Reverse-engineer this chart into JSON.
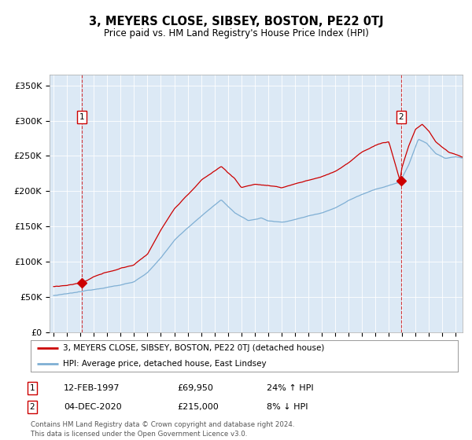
{
  "title": "3, MEYERS CLOSE, SIBSEY, BOSTON, PE22 0TJ",
  "subtitle": "Price paid vs. HM Land Registry's House Price Index (HPI)",
  "legend_line1": "3, MEYERS CLOSE, SIBSEY, BOSTON, PE22 0TJ (detached house)",
  "legend_line2": "HPI: Average price, detached house, East Lindsey",
  "annotation1_date": "12-FEB-1997",
  "annotation1_price": "£69,950",
  "annotation1_hpi": "24% ↑ HPI",
  "annotation2_date": "04-DEC-2020",
  "annotation2_price": "£215,000",
  "annotation2_hpi": "8% ↓ HPI",
  "footer": "Contains HM Land Registry data © Crown copyright and database right 2024.\nThis data is licensed under the Open Government Licence v3.0.",
  "sale1_year": 1997.12,
  "sale1_price": 69950,
  "sale2_year": 2020.92,
  "sale2_price": 215000,
  "red_line_color": "#cc0000",
  "blue_line_color": "#7fafd4",
  "marker_color": "#cc0000",
  "vline_color": "#cc0000",
  "plot_bg_color": "#dce9f5",
  "ylim_max": 360000,
  "xlim_start": 1994.7,
  "xlim_end": 2025.5,
  "hpi_keypoints_t": [
    1995.0,
    1996.0,
    1997.0,
    1998.0,
    1999.0,
    2000.0,
    2001.0,
    2002.0,
    2003.0,
    2004.0,
    2005.0,
    2006.0,
    2007.5,
    2008.5,
    2009.5,
    2010.5,
    2011.0,
    2012.0,
    2013.0,
    2014.0,
    2015.0,
    2016.0,
    2017.0,
    2018.0,
    2019.0,
    2020.0,
    2020.83,
    2021.5,
    2022.2,
    2022.8,
    2023.5,
    2024.2,
    2025.0,
    2025.5
  ],
  "hpi_keypoints_v": [
    52000,
    54000,
    56500,
    60000,
    64000,
    67000,
    72000,
    85000,
    105000,
    130000,
    148000,
    165000,
    188000,
    170000,
    158000,
    162000,
    158000,
    156000,
    160000,
    165000,
    170000,
    177000,
    188000,
    197000,
    205000,
    210000,
    215000,
    240000,
    275000,
    270000,
    255000,
    248000,
    250000,
    248000
  ],
  "red_keypoints_t": [
    1995.0,
    1996.0,
    1997.0,
    1997.5,
    1998.0,
    1999.0,
    2000.0,
    2001.0,
    2002.0,
    2003.0,
    2004.0,
    2005.0,
    2006.0,
    2007.5,
    2008.5,
    2009.0,
    2010.0,
    2011.0,
    2012.0,
    2013.0,
    2014.0,
    2015.0,
    2016.0,
    2017.0,
    2018.0,
    2019.0,
    2019.5,
    2020.0,
    2020.83,
    2021.0,
    2021.5,
    2022.0,
    2022.5,
    2023.0,
    2023.5,
    2024.0,
    2024.5,
    2025.0,
    2025.5
  ],
  "red_keypoints_v": [
    65000,
    67000,
    69950,
    73000,
    78000,
    84000,
    90000,
    95000,
    110000,
    145000,
    175000,
    195000,
    215000,
    235000,
    218000,
    205000,
    210000,
    208000,
    204000,
    210000,
    215000,
    220000,
    228000,
    240000,
    255000,
    265000,
    268000,
    270000,
    215000,
    235000,
    265000,
    288000,
    295000,
    285000,
    270000,
    262000,
    255000,
    252000,
    248000
  ]
}
